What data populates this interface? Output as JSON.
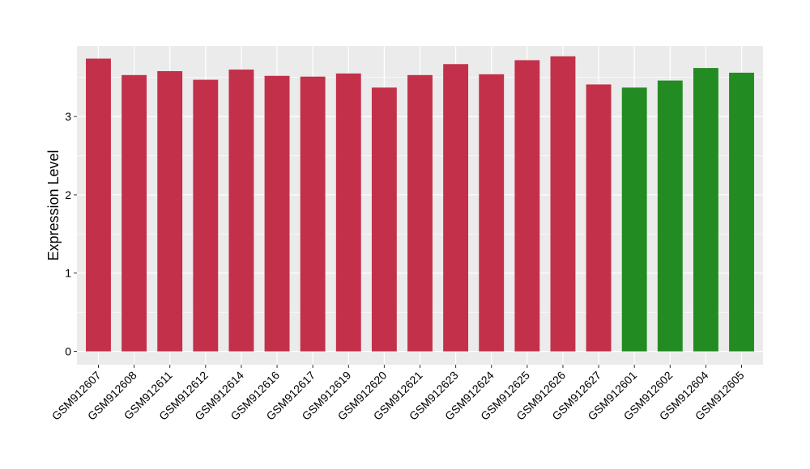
{
  "chart_data": {
    "type": "bar",
    "title": "",
    "xlabel": "",
    "ylabel": "Expression Level",
    "ylim": [
      -0.17,
      3.9
    ],
    "yticks": [
      0,
      1,
      2,
      3
    ],
    "grid": true,
    "categories": [
      "GSM912607",
      "GSM912608",
      "GSM912611",
      "GSM912612",
      "GSM912614",
      "GSM912616",
      "GSM912617",
      "GSM912619",
      "GSM912620",
      "GSM912621",
      "GSM912623",
      "GSM912624",
      "GSM912625",
      "GSM912626",
      "GSM912627",
      "GSM912601",
      "GSM912602",
      "GSM912604",
      "GSM912605"
    ],
    "values": [
      3.74,
      3.53,
      3.58,
      3.47,
      3.6,
      3.52,
      3.51,
      3.55,
      3.37,
      3.53,
      3.67,
      3.54,
      3.72,
      3.77,
      3.41,
      3.37,
      3.46,
      3.62,
      3.56
    ],
    "bar_colors": [
      "#c3304a",
      "#c3304a",
      "#c3304a",
      "#c3304a",
      "#c3304a",
      "#c3304a",
      "#c3304a",
      "#c3304a",
      "#c3304a",
      "#c3304a",
      "#c3304a",
      "#c3304a",
      "#c3304a",
      "#c3304a",
      "#c3304a",
      "#228b22",
      "#228b22",
      "#228b22",
      "#228b22"
    ],
    "panel_background": "#ebebeb",
    "gridline_color": "#ffffff"
  }
}
